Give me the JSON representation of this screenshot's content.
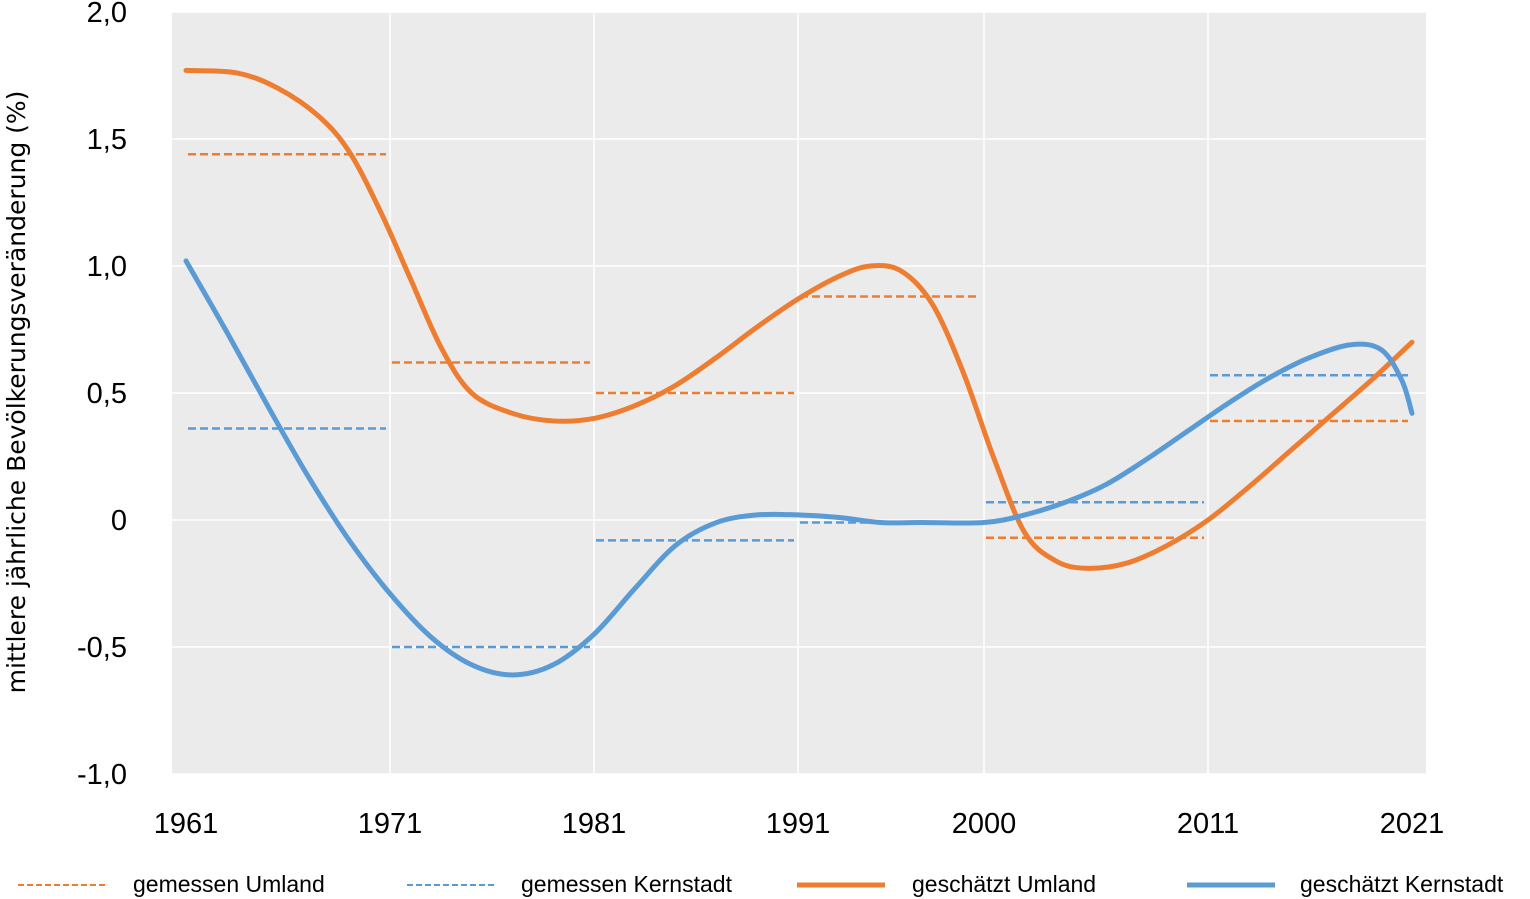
{
  "chart_data": {
    "type": "line",
    "title": "",
    "xlabel": "",
    "ylabel": "mittlere jährliche Bevölkerungsveränderung (%)",
    "x_ticks": [
      "1961",
      "1971",
      "1981",
      "1991",
      "2000",
      "2011",
      "2021"
    ],
    "y_ticks": [
      "2,0",
      "1,5",
      "1,0",
      "0,5",
      "0",
      "-0,5",
      "-1,0"
    ],
    "ylim": [
      -1.0,
      2.0
    ],
    "xlim": [
      1961,
      2021
    ],
    "grid": true,
    "legend_position": "bottom",
    "series": [
      {
        "name": "gemessen Umland",
        "style": "dashed",
        "color": "#ED7D31",
        "segments": [
          {
            "from": 1961,
            "to": 1971,
            "value": 1.44
          },
          {
            "from": 1971,
            "to": 1981,
            "value": 0.62
          },
          {
            "from": 1981,
            "to": 1991,
            "value": 0.5
          },
          {
            "from": 1991,
            "to": 2000,
            "value": 0.88
          },
          {
            "from": 2000,
            "to": 2011,
            "value": -0.07
          },
          {
            "from": 2011,
            "to": 2021,
            "value": 0.39
          }
        ]
      },
      {
        "name": "gemessen Kernstadt",
        "style": "dashed",
        "color": "#5B9BD5",
        "segments": [
          {
            "from": 1961,
            "to": 1971,
            "value": 0.36
          },
          {
            "from": 1971,
            "to": 1981,
            "value": -0.5
          },
          {
            "from": 1981,
            "to": 1991,
            "value": -0.08
          },
          {
            "from": 1991,
            "to": 2000,
            "value": -0.01
          },
          {
            "from": 2000,
            "to": 2011,
            "value": 0.07
          },
          {
            "from": 2011,
            "to": 2021,
            "value": 0.57
          }
        ]
      },
      {
        "name": "geschätzt Umland",
        "style": "solid",
        "color": "#ED7D31",
        "points": [
          [
            1961,
            1.77
          ],
          [
            1963.5,
            1.76
          ],
          [
            1965.5,
            1.7
          ],
          [
            1967.5,
            1.59
          ],
          [
            1969,
            1.45
          ],
          [
            1970.5,
            1.22
          ],
          [
            1972,
            0.95
          ],
          [
            1973.5,
            0.68
          ],
          [
            1975,
            0.5
          ],
          [
            1977,
            0.42
          ],
          [
            1979,
            0.39
          ],
          [
            1981,
            0.4
          ],
          [
            1983,
            0.45
          ],
          [
            1985,
            0.53
          ],
          [
            1987,
            0.64
          ],
          [
            1989,
            0.76
          ],
          [
            1991,
            0.87
          ],
          [
            1993,
            0.96
          ],
          [
            1994.5,
            1.0
          ],
          [
            1996,
            0.98
          ],
          [
            1997.5,
            0.85
          ],
          [
            1999,
            0.58
          ],
          [
            2000.5,
            0.24
          ],
          [
            2002,
            -0.05
          ],
          [
            2003.5,
            -0.16
          ],
          [
            2005,
            -0.19
          ],
          [
            2007,
            -0.17
          ],
          [
            2009,
            -0.1
          ],
          [
            2011,
            0.0
          ],
          [
            2013,
            0.13
          ],
          [
            2015,
            0.27
          ],
          [
            2017,
            0.41
          ],
          [
            2019,
            0.55
          ],
          [
            2021,
            0.7
          ]
        ]
      },
      {
        "name": "geschätzt Kernstadt",
        "style": "solid",
        "color": "#5B9BD5",
        "points": [
          [
            1961,
            1.02
          ],
          [
            1963,
            0.74
          ],
          [
            1965,
            0.45
          ],
          [
            1967,
            0.17
          ],
          [
            1969,
            -0.08
          ],
          [
            1971,
            -0.29
          ],
          [
            1973,
            -0.46
          ],
          [
            1975,
            -0.57
          ],
          [
            1977,
            -0.61
          ],
          [
            1979,
            -0.57
          ],
          [
            1981,
            -0.45
          ],
          [
            1983,
            -0.27
          ],
          [
            1985,
            -0.1
          ],
          [
            1987,
            -0.01
          ],
          [
            1989,
            0.02
          ],
          [
            1991,
            0.02
          ],
          [
            1993,
            0.01
          ],
          [
            1995,
            -0.01
          ],
          [
            1997,
            -0.01
          ],
          [
            2000,
            -0.01
          ],
          [
            2002,
            0.02
          ],
          [
            2004,
            0.07
          ],
          [
            2006,
            0.14
          ],
          [
            2008,
            0.24
          ],
          [
            2010,
            0.35
          ],
          [
            2012,
            0.46
          ],
          [
            2014,
            0.56
          ],
          [
            2016,
            0.64
          ],
          [
            2018,
            0.69
          ],
          [
            2019.5,
            0.67
          ],
          [
            2020.5,
            0.55
          ],
          [
            2021,
            0.42
          ]
        ]
      }
    ]
  }
}
